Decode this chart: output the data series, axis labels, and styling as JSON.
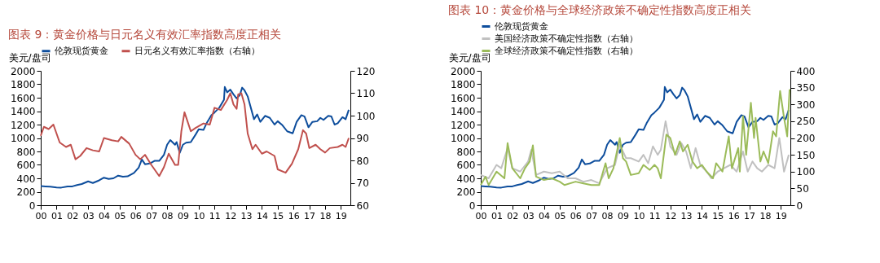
{
  "chart_data": [
    {
      "type": "line",
      "title": "图表 9：黄金价格与日元名义有效汇率指数高度正相关",
      "ylabel": "美元/盘司",
      "legend": "top",
      "xlim": [
        2000,
        2019.6
      ],
      "xticks": [
        {
          "value": 2000,
          "label": "00"
        },
        {
          "value": 2001,
          "label": "01"
        },
        {
          "value": 2002,
          "label": "02"
        },
        {
          "value": 2003,
          "label": "03"
        },
        {
          "value": 2004,
          "label": "04"
        },
        {
          "value": 2005,
          "label": "05"
        },
        {
          "value": 2006,
          "label": "06"
        },
        {
          "value": 2007,
          "label": "07"
        },
        {
          "value": 2008,
          "label": "08"
        },
        {
          "value": 2009,
          "label": "09"
        },
        {
          "value": 2010,
          "label": "10"
        },
        {
          "value": 2011,
          "label": "11"
        },
        {
          "value": 2012,
          "label": "12"
        },
        {
          "value": 2013,
          "label": "13"
        },
        {
          "value": 2014,
          "label": "14"
        },
        {
          "value": 2015,
          "label": "15"
        },
        {
          "value": 2016,
          "label": "16"
        },
        {
          "value": 2017,
          "label": "17"
        },
        {
          "value": 2018,
          "label": "18"
        },
        {
          "value": 2019,
          "label": "19"
        }
      ],
      "ylim": [
        0,
        2000
      ],
      "yticks": [
        0,
        200,
        400,
        600,
        800,
        1000,
        1200,
        1400,
        1600,
        1800,
        2000
      ],
      "y2lim": [
        60,
        120
      ],
      "y2ticks": [
        60,
        70,
        80,
        90,
        100,
        110,
        120
      ],
      "series": [
        {
          "name": "伦敦现货黄金",
          "color": "#0d4d9c",
          "x": [
            2000,
            2000.3,
            2000.6,
            2001,
            2001.3,
            2001.7,
            2002,
            2002.3,
            2002.6,
            2003,
            2003.3,
            2003.7,
            2004,
            2004.3,
            2004.6,
            2004.9,
            2005.2,
            2005.5,
            2005.9,
            2006.2,
            2006.4,
            2006.6,
            2006.9,
            2007.2,
            2007.5,
            2007.8,
            2008,
            2008.2,
            2008.5,
            2008.6,
            2008.8,
            2009,
            2009.2,
            2009.5,
            2009.8,
            2010,
            2010.3,
            2010.5,
            2010.8,
            2011,
            2011.3,
            2011.6,
            2011.65,
            2011.8,
            2012,
            2012.2,
            2012.4,
            2012.6,
            2012.75,
            2012.9,
            2013.1,
            2013.3,
            2013.5,
            2013.7,
            2013.9,
            2014.2,
            2014.5,
            2014.8,
            2015,
            2015.3,
            2015.6,
            2015.95,
            2016.2,
            2016.5,
            2016.7,
            2016.95,
            2017.2,
            2017.5,
            2017.7,
            2017.9,
            2018.2,
            2018.4,
            2018.6,
            2018.8,
            2019.1,
            2019.3,
            2019.5
          ],
          "values": [
            285,
            280,
            275,
            265,
            262,
            280,
            280,
            300,
            315,
            355,
            330,
            370,
            410,
            390,
            400,
            440,
            425,
            430,
            480,
            560,
            680,
            610,
            620,
            660,
            660,
            750,
            900,
            970,
            900,
            940,
            780,
            900,
            930,
            940,
            1050,
            1130,
            1120,
            1220,
            1340,
            1380,
            1450,
            1570,
            1760,
            1680,
            1720,
            1650,
            1590,
            1640,
            1750,
            1710,
            1620,
            1450,
            1280,
            1350,
            1240,
            1330,
            1300,
            1200,
            1250,
            1190,
            1100,
            1070,
            1240,
            1340,
            1320,
            1160,
            1240,
            1250,
            1300,
            1270,
            1330,
            1320,
            1200,
            1220,
            1310,
            1280,
            1420
          ]
        },
        {
          "name": "日元名义有效汇率指数（右轴）",
          "color": "#c0504d",
          "axis": "y2",
          "x": [
            2000,
            2000.2,
            2000.5,
            2000.8,
            2001.2,
            2001.6,
            2001.9,
            2002.2,
            2002.5,
            2002.9,
            2003.3,
            2003.7,
            2004,
            2004.5,
            2004.9,
            2005.1,
            2005.6,
            2006,
            2006.3,
            2006.6,
            2007,
            2007.5,
            2007.8,
            2008.1,
            2008.5,
            2008.7,
            2008.9,
            2009.1,
            2009.5,
            2009.8,
            2010.3,
            2010.7,
            2011,
            2011.4,
            2011.8,
            2012,
            2012.2,
            2012.4,
            2012.5,
            2012.7,
            2012.9,
            2013.1,
            2013.4,
            2013.6,
            2014,
            2014.3,
            2014.8,
            2015,
            2015.5,
            2015.9,
            2016.3,
            2016.6,
            2016.8,
            2017,
            2017.4,
            2017.7,
            2018,
            2018.3,
            2018.8,
            2019.1,
            2019.3,
            2019.5
          ],
          "values": [
            91,
            95,
            94,
            96,
            88,
            86,
            87,
            80.5,
            82,
            85.5,
            84.5,
            84,
            90,
            89,
            88.5,
            90.5,
            87.5,
            82.5,
            80.5,
            82.5,
            78,
            73,
            77,
            83,
            78,
            78,
            93,
            101.5,
            93,
            94.5,
            96.5,
            96,
            103.5,
            102.5,
            107,
            110,
            105,
            103,
            109.5,
            110,
            105,
            92,
            85,
            87,
            83,
            84,
            82,
            76,
            74.5,
            78.5,
            85,
            93.5,
            92,
            85.5,
            87,
            85,
            83.5,
            85.5,
            86,
            87,
            86,
            90
          ]
        }
      ]
    },
    {
      "type": "line",
      "title": "图表 10：黄金价格与全球经济政策不确定性指数高度正相关",
      "ylabel": "美元/盘司",
      "legend": "top",
      "xlim": [
        2000,
        2019.6
      ],
      "xticks": [
        {
          "value": 2000,
          "label": "00"
        },
        {
          "value": 2001,
          "label": "01"
        },
        {
          "value": 2002,
          "label": "02"
        },
        {
          "value": 2003,
          "label": "03"
        },
        {
          "value": 2004,
          "label": "04"
        },
        {
          "value": 2005,
          "label": "05"
        },
        {
          "value": 2006,
          "label": "06"
        },
        {
          "value": 2007,
          "label": "07"
        },
        {
          "value": 2008,
          "label": "08"
        },
        {
          "value": 2009,
          "label": "09"
        },
        {
          "value": 2010,
          "label": "10"
        },
        {
          "value": 2011,
          "label": "11"
        },
        {
          "value": 2012,
          "label": "12"
        },
        {
          "value": 2013,
          "label": "13"
        },
        {
          "value": 2014,
          "label": "14"
        },
        {
          "value": 2015,
          "label": "15"
        },
        {
          "value": 2016,
          "label": "16"
        },
        {
          "value": 2017,
          "label": "17"
        },
        {
          "value": 2018,
          "label": "18"
        },
        {
          "value": 2019,
          "label": "19"
        }
      ],
      "ylim": [
        0,
        2000
      ],
      "yticks": [
        0,
        200,
        400,
        600,
        800,
        1000,
        1200,
        1400,
        1600,
        1800,
        2000
      ],
      "y2lim": [
        0,
        400
      ],
      "y2ticks": [
        0,
        50,
        100,
        150,
        200,
        250,
        300,
        350,
        400
      ],
      "series": [
        {
          "name": "伦敦现货黄金",
          "color": "#0d4d9c",
          "x": [
            2000,
            2000.3,
            2000.6,
            2001,
            2001.3,
            2001.7,
            2002,
            2002.3,
            2002.6,
            2003,
            2003.3,
            2003.7,
            2004,
            2004.3,
            2004.6,
            2004.9,
            2005.2,
            2005.5,
            2005.9,
            2006.2,
            2006.4,
            2006.6,
            2006.9,
            2007.2,
            2007.5,
            2007.8,
            2008,
            2008.2,
            2008.5,
            2008.6,
            2008.8,
            2009,
            2009.2,
            2009.5,
            2009.8,
            2010,
            2010.3,
            2010.5,
            2010.8,
            2011,
            2011.3,
            2011.6,
            2011.65,
            2011.8,
            2012,
            2012.2,
            2012.4,
            2012.6,
            2012.75,
            2012.9,
            2013.1,
            2013.3,
            2013.5,
            2013.7,
            2013.9,
            2014.2,
            2014.5,
            2014.8,
            2015,
            2015.3,
            2015.6,
            2015.95,
            2016.2,
            2016.5,
            2016.7,
            2016.95,
            2017.2,
            2017.5,
            2017.7,
            2017.9,
            2018.2,
            2018.4,
            2018.6,
            2018.8,
            2019.1,
            2019.3,
            2019.5
          ],
          "values": [
            285,
            280,
            275,
            265,
            262,
            280,
            280,
            300,
            315,
            355,
            330,
            370,
            410,
            390,
            400,
            440,
            425,
            430,
            480,
            560,
            680,
            610,
            620,
            660,
            660,
            750,
            900,
            970,
            900,
            940,
            780,
            900,
            930,
            940,
            1050,
            1130,
            1120,
            1220,
            1340,
            1380,
            1450,
            1570,
            1760,
            1680,
            1720,
            1650,
            1590,
            1640,
            1750,
            1710,
            1620,
            1450,
            1280,
            1350,
            1240,
            1330,
            1300,
            1200,
            1250,
            1190,
            1100,
            1070,
            1240,
            1340,
            1320,
            1160,
            1240,
            1250,
            1300,
            1270,
            1330,
            1320,
            1200,
            1220,
            1310,
            1280,
            1420
          ]
        },
        {
          "name": "美国经济政策不确定性指数（右轴）",
          "color": "#c0c0c0",
          "axis": "y2",
          "x": [
            2000,
            2000.5,
            2001,
            2001.3,
            2001.7,
            2002,
            2002.5,
            2003,
            2003.2,
            2003.5,
            2004,
            2004.5,
            2005,
            2005.5,
            2006,
            2006.5,
            2007,
            2007.5,
            2008,
            2008.5,
            2008.8,
            2009.2,
            2009.5,
            2010,
            2010.3,
            2010.6,
            2010.9,
            2011.2,
            2011.4,
            2011.7,
            2012,
            2012.4,
            2012.7,
            2013,
            2013.3,
            2013.6,
            2013.9,
            2014.3,
            2014.6,
            2015,
            2015.4,
            2015.8,
            2016.2,
            2016.6,
            2016.9,
            2017.2,
            2017.5,
            2017.8,
            2018.2,
            2018.6,
            2018.9,
            2019.2,
            2019.5
          ],
          "values": [
            90,
            80,
            120,
            110,
            170,
            110,
            100,
            130,
            165,
            90,
            100,
            95,
            100,
            80,
            80,
            70,
            75,
            65,
            110,
            120,
            180,
            140,
            140,
            130,
            150,
            125,
            175,
            150,
            165,
            250,
            175,
            150,
            185,
            160,
            110,
            170,
            120,
            100,
            80,
            100,
            110,
            120,
            100,
            160,
            100,
            130,
            110,
            100,
            120,
            110,
            200,
            100,
            150
          ]
        },
        {
          "name": "全球经济政策不确定性指数（右轴）",
          "color": "#9bbb59",
          "axis": "y2",
          "x": [
            2000,
            2000.3,
            2000.5,
            2001,
            2001.5,
            2001.7,
            2002,
            2002.5,
            2002.8,
            2003.1,
            2003.3,
            2003.5,
            2004,
            2004.5,
            2005,
            2005.3,
            2006,
            2006.5,
            2007,
            2007.5,
            2007.9,
            2008.1,
            2008.4,
            2008.8,
            2009,
            2009.2,
            2009.5,
            2010,
            2010.3,
            2010.7,
            2011,
            2011.2,
            2011.4,
            2011.75,
            2012,
            2012.3,
            2012.6,
            2012.8,
            2013.1,
            2013.4,
            2013.7,
            2014,
            2014.3,
            2014.7,
            2014.9,
            2015.3,
            2015.7,
            2015.9,
            2016.3,
            2016.4,
            2016.6,
            2016.8,
            2017.1,
            2017.3,
            2017.4,
            2017.7,
            2017.9,
            2018.2,
            2018.5,
            2018.7,
            2018.95,
            2019.2,
            2019.4,
            2019.55
          ],
          "values": [
            60,
            85,
            60,
            100,
            80,
            185,
            110,
            80,
            110,
            130,
            178,
            85,
            75,
            80,
            70,
            60,
            70,
            65,
            60,
            60,
            125,
            80,
            110,
            200,
            140,
            130,
            90,
            95,
            120,
            105,
            120,
            110,
            80,
            210,
            200,
            150,
            190,
            160,
            180,
            130,
            110,
            120,
            100,
            80,
            125,
            100,
            205,
            110,
            170,
            100,
            265,
            150,
            305,
            200,
            260,
            130,
            160,
            125,
            220,
            205,
            340,
            260,
            205,
            345
          ]
        }
      ]
    }
  ]
}
